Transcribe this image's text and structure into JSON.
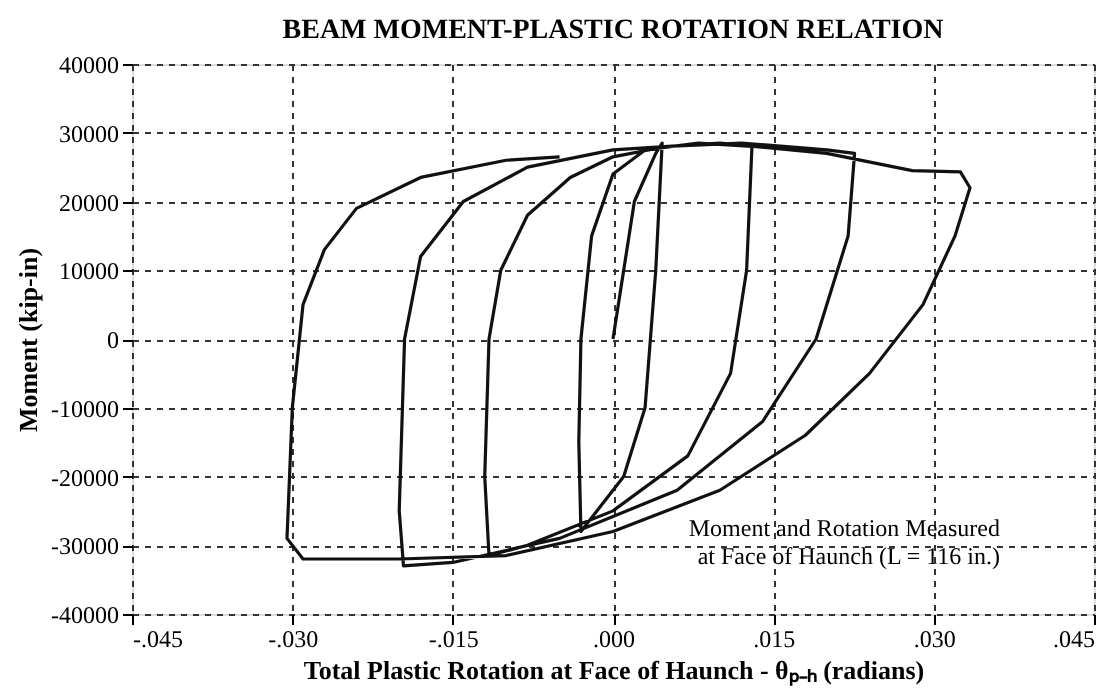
{
  "chart_data": {
    "type": "line",
    "title": "BEAM MOMENT-PLASTIC ROTATION RELATION",
    "xlabel": "Total Plastic Rotation at Face of Haunch - θₚ₋ₕ (radians)",
    "ylabel": "Moment (kip-in)",
    "x": [
      0,
      0.002,
      0.004,
      0.0046,
      0.004,
      0.003,
      0.001,
      -0.002,
      -0.003,
      -0.0032,
      -0.003,
      -0.002,
      0,
      0.003,
      0.008,
      0.013,
      0.0125,
      0.011,
      0.007,
      0,
      -0.008,
      -0.0116,
      -0.012,
      -0.0116,
      -0.0105,
      -0.008,
      -0.004,
      0,
      0.005,
      0.012,
      0.02,
      0.0226,
      0.022,
      0.019,
      0.014,
      0.006,
      -0.005,
      -0.015,
      -0.0196,
      -0.02,
      -0.0195,
      -0.018,
      -0.014,
      -0.008,
      0,
      0.01,
      0.02,
      0.028,
      0.0325,
      0.0334,
      0.032,
      0.029,
      0.024,
      0.018,
      0.01,
      0,
      -0.01,
      -0.02,
      -0.029,
      -0.0305,
      -0.03,
      -0.029,
      -0.027,
      -0.024,
      -0.018,
      -0.01,
      -0.005
    ],
    "series": [
      {
        "color": "#111111",
        "values": [
          0,
          20000,
          27000,
          28500,
          10000,
          -10000,
          -20000,
          -26000,
          -28000,
          -15000,
          0,
          15000,
          24000,
          27500,
          28500,
          28000,
          10000,
          -5000,
          -17000,
          -25000,
          -30000,
          -31500,
          -20000,
          0,
          10000,
          18000,
          23500,
          26500,
          28000,
          28500,
          27500,
          27000,
          15000,
          0,
          -12000,
          -22000,
          -29000,
          -32500,
          -33000,
          -25000,
          0,
          12000,
          20000,
          25000,
          27500,
          28500,
          27000,
          24500,
          24300,
          22000,
          15000,
          5000,
          -5000,
          -14000,
          -22000,
          -28000,
          -31500,
          -32000,
          -32000,
          -29000,
          -10000,
          5000,
          13000,
          19000,
          23500,
          26000,
          26500
        ]
      }
    ],
    "xlim": [
      -0.045,
      0.045
    ],
    "ylim": [
      -40000,
      40000
    ],
    "xticks": [
      {
        "value": -0.045,
        "label": "-.045"
      },
      {
        "value": -0.03,
        "label": "-.030"
      },
      {
        "value": -0.015,
        "label": "-.015"
      },
      {
        "value": 0,
        "label": ".000"
      },
      {
        "value": 0.015,
        "label": ".015"
      },
      {
        "value": 0.03,
        "label": ".030"
      },
      {
        "value": 0.045,
        "label": ".045"
      }
    ],
    "yticks": [
      -40000,
      -30000,
      -20000,
      -10000,
      0,
      10000,
      20000,
      30000,
      40000
    ],
    "grid": true,
    "line_style": "solid",
    "marker": "none",
    "annotations": [
      "Moment and Rotation Measured\nat Face of Haunch (L = 116 in.)"
    ]
  }
}
